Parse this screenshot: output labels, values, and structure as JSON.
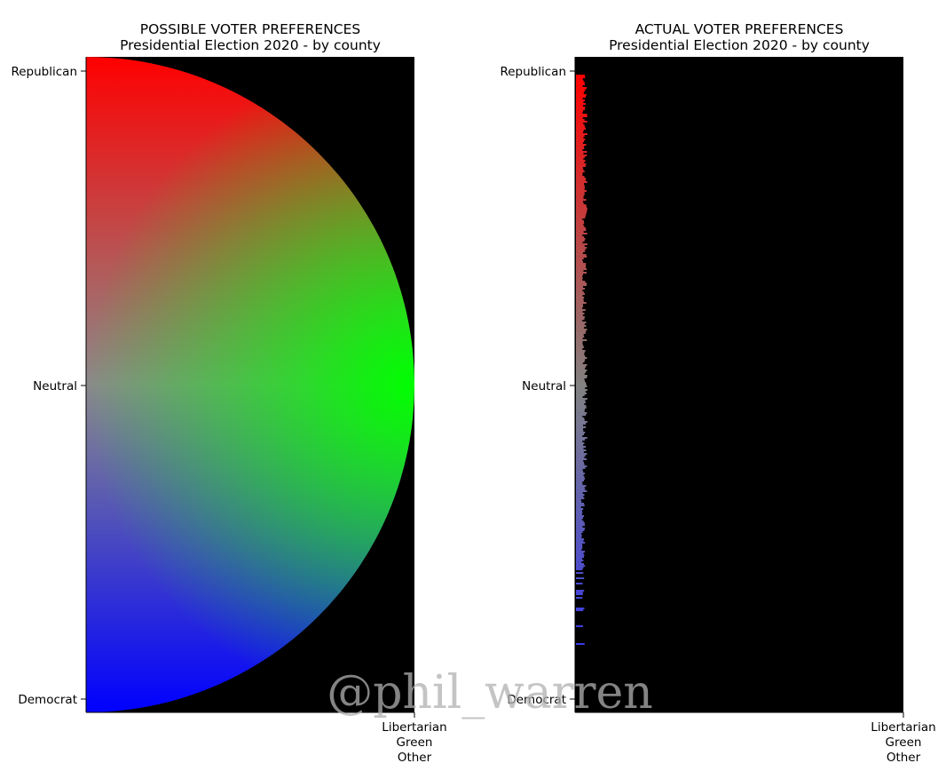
{
  "chart_data": [
    {
      "type": "heatmap",
      "title": "POSSIBLE VOTER PREFERENCES",
      "subtitle": "Presidential Election 2020 - by county",
      "y_ticks": [
        "Republican",
        "Neutral",
        "Democrat"
      ],
      "x_ticks": [
        "Libertarian",
        "Green",
        "Other"
      ],
      "color_scale": {
        "republican": "#ff0000",
        "democrat": "#0000ff",
        "third_party": "#00ff00",
        "background": "#000000"
      },
      "region": "half-disc",
      "grid": false
    },
    {
      "type": "heatmap",
      "title": "ACTUAL VOTER PREFERENCES",
      "subtitle": "Presidential Election 2020 - by county",
      "y_ticks": [
        "Republican",
        "Neutral",
        "Democrat"
      ],
      "x_ticks": [
        "Libertarian",
        "Green",
        "Other"
      ],
      "color_scale": {
        "republican": "#ff0000",
        "democrat": "#0000ff",
        "third_party": "#00ff00",
        "background": "#000000"
      },
      "distribution": "counties clustered along the Republican-Democrat axis with third-party share near 0",
      "max_third_party_share": 0.035,
      "grid": false
    }
  ],
  "watermark": "@phil_warren"
}
